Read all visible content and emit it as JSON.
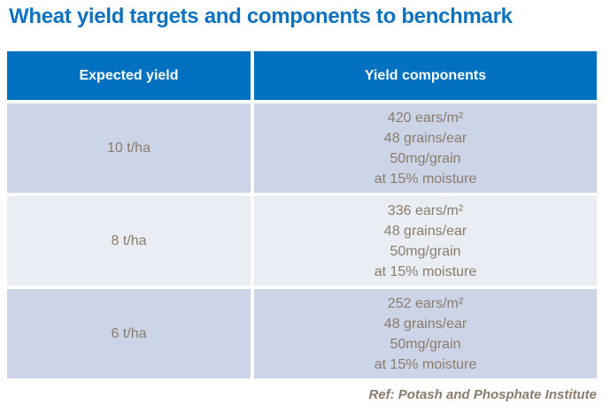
{
  "title": "Wheat yield targets and components to benchmark",
  "table": {
    "columns": [
      {
        "label": "Expected yield"
      },
      {
        "label": "Yield components"
      }
    ],
    "rows": [
      {
        "yield": "10 t/ha",
        "components": [
          "420 ears/m²",
          "48 grains/ear",
          "50mg/grain",
          "at 15% moisture"
        ]
      },
      {
        "yield": "8 t/ha",
        "components": [
          "336 ears/m²",
          "48 grains/ear",
          "50mg/grain",
          "at 15% moisture"
        ]
      },
      {
        "yield": "6 t/ha",
        "components": [
          "252 ears/m²",
          "48 grains/ear",
          "50mg/grain",
          "at 15% moisture"
        ]
      }
    ]
  },
  "footer": {
    "reference": "Ref: Potash and Phosphate Institute"
  },
  "colors": {
    "title_text": "#0D72C0",
    "header_bg": "#0070C0",
    "header_text": "#FFFFFF",
    "row_shaded_bg": "#CBD5E7",
    "row_light_bg": "#E9EDF4",
    "body_text": "#8B7B6B"
  }
}
